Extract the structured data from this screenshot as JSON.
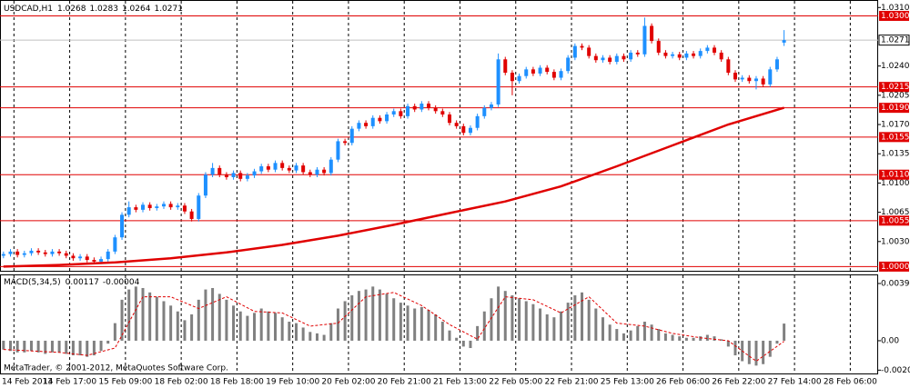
{
  "chart_data": [
    {
      "type": "candlestick",
      "symbol": "USDCAD,H1",
      "up_color": "#1e90ff",
      "down_color": "#e00000",
      "grid": true,
      "copyright": "MetaTrader, © 2001-2012, MetaQuotes Software Corp.",
      "xlim": [
        0,
        126
      ],
      "xticks": [
        {
          "value": 2,
          "label": "14 Feb 2013"
        },
        {
          "value": 10,
          "label": "14 Feb 17:00"
        },
        {
          "value": 18,
          "label": "15 Feb 09:00"
        },
        {
          "value": 26,
          "label": "18 Feb 02:00"
        },
        {
          "value": 34,
          "label": "18 Feb 18:00"
        },
        {
          "value": 42,
          "label": "19 Feb 10:00"
        },
        {
          "value": 50,
          "label": "20 Feb 02:00"
        },
        {
          "value": 58,
          "label": "20 Feb 21:00"
        },
        {
          "value": 66,
          "label": "21 Feb 13:00"
        },
        {
          "value": 74,
          "label": "22 Feb 05:00"
        },
        {
          "value": 82,
          "label": "22 Feb 21:00"
        },
        {
          "value": 90,
          "label": "25 Feb 13:00"
        },
        {
          "value": 98,
          "label": "26 Feb 06:00"
        },
        {
          "value": 106,
          "label": "26 Feb 22:00"
        },
        {
          "value": 114,
          "label": "27 Feb 14:00"
        },
        {
          "value": 122,
          "label": "28 Feb 06:00"
        }
      ],
      "ylim": [
        0.9995,
        1.0319
      ],
      "yticks": [
        {
          "value": 1.031,
          "label": "1.0310"
        },
        {
          "value": 1.024,
          "label": "1.0240"
        },
        1.0205,
        {
          "value": 1.017,
          "label": "1.0170"
        },
        1.0135,
        {
          "value": 1.01,
          "label": "1.0100"
        },
        1.0065,
        {
          "value": 1.003,
          "label": "1.0030"
        }
      ],
      "levels": [
        {
          "value": 1.03,
          "label": "1.0300"
        },
        1.0215,
        {
          "value": 1.019,
          "label": "1.0190"
        },
        1.0155,
        {
          "value": 1.011,
          "label": "1.0110"
        },
        1.0055,
        {
          "value": 1,
          "label": "1.0000"
        }
      ],
      "level_color": "#e00000",
      "current_price": 1.0271,
      "ma": {
        "color": "#e00000",
        "x": [
          0,
          8,
          16,
          24,
          32,
          40,
          48,
          56,
          64,
          72,
          80,
          88,
          96,
          104,
          112
        ],
        "values": [
          1.0,
          1.0002,
          1.0005,
          1.001,
          1.0017,
          1.0026,
          1.0037,
          1.005,
          1.0064,
          1.0078,
          1.0096,
          1.012,
          1.0145,
          1.017,
          1.019
        ]
      },
      "ohlc": [
        [
          1.0013,
          1.0018,
          1.001,
          1.0015
        ],
        [
          1.0015,
          1.0021,
          1.0012,
          1.0018
        ],
        [
          1.0018,
          1.0021,
          1.0011,
          1.0014
        ],
        [
          1.0014,
          1.0019,
          1.0011,
          1.0016
        ],
        [
          1.0016,
          1.0022,
          1.0013,
          1.0019
        ],
        [
          1.0019,
          1.0022,
          1.0014,
          1.0017
        ],
        [
          1.0017,
          1.002,
          1.0012,
          1.0015
        ],
        [
          1.0015,
          1.0021,
          1.0012,
          1.0018
        ],
        [
          1.0018,
          1.0021,
          1.0013,
          1.0016
        ],
        [
          1.0016,
          1.0019,
          1.001,
          1.0013
        ],
        [
          1.0013,
          1.0016,
          1.0007,
          1.001
        ],
        [
          1.001,
          1.0015,
          1.0007,
          1.0012
        ],
        [
          1.0012,
          1.0015,
          1.0005,
          1.0008
        ],
        [
          1.0008,
          1.0011,
          1.0003,
          1.0006
        ],
        [
          1.0006,
          1.0012,
          1.0003,
          1.0009
        ],
        [
          1.0009,
          1.0021,
          1.0006,
          1.0018
        ],
        [
          1.0018,
          1.0038,
          1.0015,
          1.0035
        ],
        [
          1.0035,
          1.0065,
          1.0032,
          1.0062
        ],
        [
          1.0062,
          1.0078,
          1.0059,
          1.0071
        ],
        [
          1.0071,
          1.0074,
          1.0065,
          1.0068
        ],
        [
          1.0068,
          1.0077,
          1.0065,
          1.0074
        ],
        [
          1.0074,
          1.0077,
          1.0067,
          1.007
        ],
        [
          1.007,
          1.0075,
          1.0067,
          1.0072
        ],
        [
          1.0072,
          1.0078,
          1.0069,
          1.0075
        ],
        [
          1.0075,
          1.0078,
          1.0068,
          1.0071
        ],
        [
          1.0071,
          1.0076,
          1.0068,
          1.0073
        ],
        [
          1.0073,
          1.0076,
          1.0063,
          1.0066
        ],
        [
          1.0066,
          1.0069,
          1.0054,
          1.0057
        ],
        [
          1.0057,
          1.0088,
          1.0054,
          1.0085
        ],
        [
          1.0085,
          1.0113,
          1.0082,
          1.011
        ],
        [
          1.011,
          1.0124,
          1.0107,
          1.0118
        ],
        [
          1.0118,
          1.0121,
          1.0107,
          1.011
        ],
        [
          1.011,
          1.0113,
          1.0104,
          1.0107
        ],
        [
          1.0107,
          1.0115,
          1.0104,
          1.0112
        ],
        [
          1.0112,
          1.0115,
          1.0102,
          1.0105
        ],
        [
          1.0105,
          1.0112,
          1.0102,
          1.0109
        ],
        [
          1.0109,
          1.0117,
          1.0106,
          1.0114
        ],
        [
          1.0114,
          1.0123,
          1.0111,
          1.012
        ],
        [
          1.012,
          1.0123,
          1.0113,
          1.0116
        ],
        [
          1.0116,
          1.0127,
          1.0113,
          1.0124
        ],
        [
          1.0124,
          1.0127,
          1.0115,
          1.0118
        ],
        [
          1.0118,
          1.0121,
          1.0112,
          1.0115
        ],
        [
          1.0115,
          1.0124,
          1.0112,
          1.0121
        ],
        [
          1.0121,
          1.0124,
          1.011,
          1.0113
        ],
        [
          1.0113,
          1.0116,
          1.0107,
          1.011
        ],
        [
          1.011,
          1.0119,
          1.0107,
          1.0116
        ],
        [
          1.0116,
          1.0119,
          1.0109,
          1.0112
        ],
        [
          1.0112,
          1.0131,
          1.0109,
          1.0128
        ],
        [
          1.0128,
          1.0153,
          1.0125,
          1.015
        ],
        [
          1.015,
          1.0153,
          1.0145,
          1.0148
        ],
        [
          1.0148,
          1.0168,
          1.0145,
          1.0165
        ],
        [
          1.0165,
          1.0175,
          1.0162,
          1.0172
        ],
        [
          1.0172,
          1.0175,
          1.0165,
          1.0168
        ],
        [
          1.0168,
          1.0181,
          1.0165,
          1.0178
        ],
        [
          1.0178,
          1.0181,
          1.0171,
          1.0174
        ],
        [
          1.0174,
          1.0185,
          1.0171,
          1.0182
        ],
        [
          1.0182,
          1.0189,
          1.0179,
          1.0186
        ],
        [
          1.0186,
          1.0189,
          1.0177,
          1.018
        ],
        [
          1.018,
          1.0195,
          1.0177,
          1.0192
        ],
        [
          1.0192,
          1.0195,
          1.0185,
          1.0188
        ],
        [
          1.0188,
          1.0198,
          1.0185,
          1.0195
        ],
        [
          1.0195,
          1.0198,
          1.0187,
          1.019
        ],
        [
          1.019,
          1.0193,
          1.0183,
          1.0186
        ],
        [
          1.0186,
          1.0189,
          1.0179,
          1.0182
        ],
        [
          1.0182,
          1.0185,
          1.0169,
          1.0172
        ],
        [
          1.0172,
          1.0175,
          1.0165,
          1.0168
        ],
        [
          1.0168,
          1.0171,
          1.0157,
          1.016
        ],
        [
          1.016,
          1.0169,
          1.0157,
          1.0166
        ],
        [
          1.0166,
          1.0183,
          1.0163,
          1.018
        ],
        [
          1.018,
          1.0193,
          1.0177,
          1.019
        ],
        [
          1.019,
          1.0197,
          1.0187,
          1.0194
        ],
        [
          1.0194,
          1.0255,
          1.0191,
          1.0248
        ],
        [
          1.0248,
          1.0251,
          1.0229,
          1.0232
        ],
        [
          1.0232,
          1.0235,
          1.0205,
          1.0222
        ],
        [
          1.0222,
          1.0231,
          1.0219,
          1.0228
        ],
        [
          1.0228,
          1.0239,
          1.0225,
          1.0236
        ],
        [
          1.0236,
          1.0239,
          1.0228,
          1.0231
        ],
        [
          1.0231,
          1.0241,
          1.0228,
          1.0238
        ],
        [
          1.0238,
          1.0241,
          1.023,
          1.0233
        ],
        [
          1.0233,
          1.0236,
          1.0223,
          1.0226
        ],
        [
          1.0226,
          1.0237,
          1.0223,
          1.0234
        ],
        [
          1.0234,
          1.0253,
          1.0231,
          1.025
        ],
        [
          1.025,
          1.0267,
          1.0247,
          1.0264
        ],
        [
          1.0264,
          1.0267,
          1.0259,
          1.0262
        ],
        [
          1.0262,
          1.0265,
          1.0249,
          1.0252
        ],
        [
          1.0252,
          1.0255,
          1.0244,
          1.0247
        ],
        [
          1.0247,
          1.0253,
          1.0244,
          1.025
        ],
        [
          1.025,
          1.0253,
          1.0242,
          1.0245
        ],
        [
          1.0245,
          1.0255,
          1.0242,
          1.0252
        ],
        [
          1.0252,
          1.0255,
          1.0245,
          1.0248
        ],
        [
          1.0248,
          1.0259,
          1.0245,
          1.0256
        ],
        [
          1.0256,
          1.0259,
          1.0251,
          1.0254
        ],
        [
          1.0254,
          1.0298,
          1.0251,
          1.0288
        ],
        [
          1.0288,
          1.0291,
          1.0267,
          1.027
        ],
        [
          1.027,
          1.0273,
          1.0253,
          1.0256
        ],
        [
          1.0256,
          1.0259,
          1.0249,
          1.0252
        ],
        [
          1.0252,
          1.0257,
          1.0249,
          1.0254
        ],
        [
          1.0254,
          1.0257,
          1.0247,
          1.025
        ],
        [
          1.025,
          1.0258,
          1.0247,
          1.0255
        ],
        [
          1.0255,
          1.0258,
          1.0249,
          1.0252
        ],
        [
          1.0252,
          1.0261,
          1.0249,
          1.0258
        ],
        [
          1.0258,
          1.0265,
          1.0255,
          1.0262
        ],
        [
          1.0262,
          1.0265,
          1.0253,
          1.0256
        ],
        [
          1.0256,
          1.0259,
          1.0245,
          1.0248
        ],
        [
          1.0248,
          1.0251,
          1.0229,
          1.0232
        ],
        [
          1.0232,
          1.0235,
          1.0221,
          1.0224
        ],
        [
          1.0224,
          1.0229,
          1.0221,
          1.0226
        ],
        [
          1.0226,
          1.0229,
          1.0219,
          1.0222
        ],
        [
          1.0222,
          1.0228,
          1.0212,
          1.0225
        ],
        [
          1.0225,
          1.0228,
          1.0215,
          1.0218
        ],
        [
          1.0218,
          1.0239,
          1.0215,
          1.0236
        ],
        [
          1.0236,
          1.0251,
          1.0233,
          1.0248
        ],
        [
          1.0268,
          1.0283,
          1.0264,
          1.0271
        ]
      ]
    },
    {
      "type": "macd",
      "title": "MACD(5,34,5)",
      "xlim": [
        0,
        126
      ],
      "ylim": [
        -0.0023,
        0.00453
      ],
      "yticks": [
        0.00391,
        {
          "value": 0,
          "label": "0.00"
        },
        -0.00201
      ],
      "hist_color": "#808080",
      "values": [
        -0.0006,
        -0.0007,
        -0.0008,
        -0.0008,
        -0.0007,
        -0.0008,
        -0.0009,
        -0.0008,
        -0.0008,
        -0.0009,
        -0.001,
        -0.001,
        -0.0011,
        -0.001,
        -0.0007,
        -0.0002,
        0.0012,
        0.0028,
        0.0035,
        0.0037,
        0.0036,
        0.0033,
        0.003,
        0.0027,
        0.0024,
        0.002,
        0.0014,
        0.0018,
        0.0028,
        0.0035,
        0.0036,
        0.0032,
        0.0028,
        0.0024,
        0.002,
        0.0017,
        0.0019,
        0.0022,
        0.002,
        0.0019,
        0.0016,
        0.0013,
        0.0012,
        0.0009,
        0.0006,
        0.0005,
        0.0004,
        0.0012,
        0.0022,
        0.0027,
        0.0031,
        0.0034,
        0.0035,
        0.0037,
        0.0035,
        0.0032,
        0.0029,
        0.0026,
        0.0024,
        0.0022,
        0.0023,
        0.0021,
        0.0018,
        0.0013,
        0.0007,
        0.0002,
        -0.0004,
        -0.0005,
        0.001,
        0.002,
        0.0029,
        0.0037,
        0.0034,
        0.0031,
        0.0029,
        0.0027,
        0.0025,
        0.0022,
        0.0018,
        0.0016,
        0.002,
        0.0026,
        0.0031,
        0.0033,
        0.0028,
        0.0022,
        0.0016,
        0.0011,
        0.0008,
        0.0005,
        0.0007,
        0.001,
        0.0013,
        0.0011,
        0.0008,
        0.0005,
        0.0004,
        0.0003,
        0.0002,
        0.0002,
        0.0003,
        0.0004,
        0.0003,
        0.0001,
        -0.0004,
        -0.001,
        -0.0014,
        -0.0016,
        -0.0017,
        -0.0016,
        -0.0011,
        -0.0002,
        0.00117
      ],
      "signal": {
        "color": "#e00000",
        "x": [
          0,
          4,
          8,
          12,
          16,
          20,
          24,
          28,
          32,
          36,
          40,
          44,
          48,
          52,
          56,
          60,
          64,
          68,
          72,
          76,
          80,
          84,
          88,
          92,
          96,
          100,
          104,
          108,
          112
        ],
        "values": [
          -0.0006,
          -0.0007,
          -0.0008,
          -0.001,
          -0.0005,
          0.003,
          0.003,
          0.0022,
          0.003,
          0.002,
          0.0019,
          0.001,
          0.0012,
          0.003,
          0.0033,
          0.0024,
          0.0011,
          0.0001,
          0.003,
          0.0028,
          0.0019,
          0.003,
          0.0012,
          0.001,
          0.0005,
          0.0002,
          0,
          -0.0014,
          -4e-05
        ]
      }
    }
  ]
}
